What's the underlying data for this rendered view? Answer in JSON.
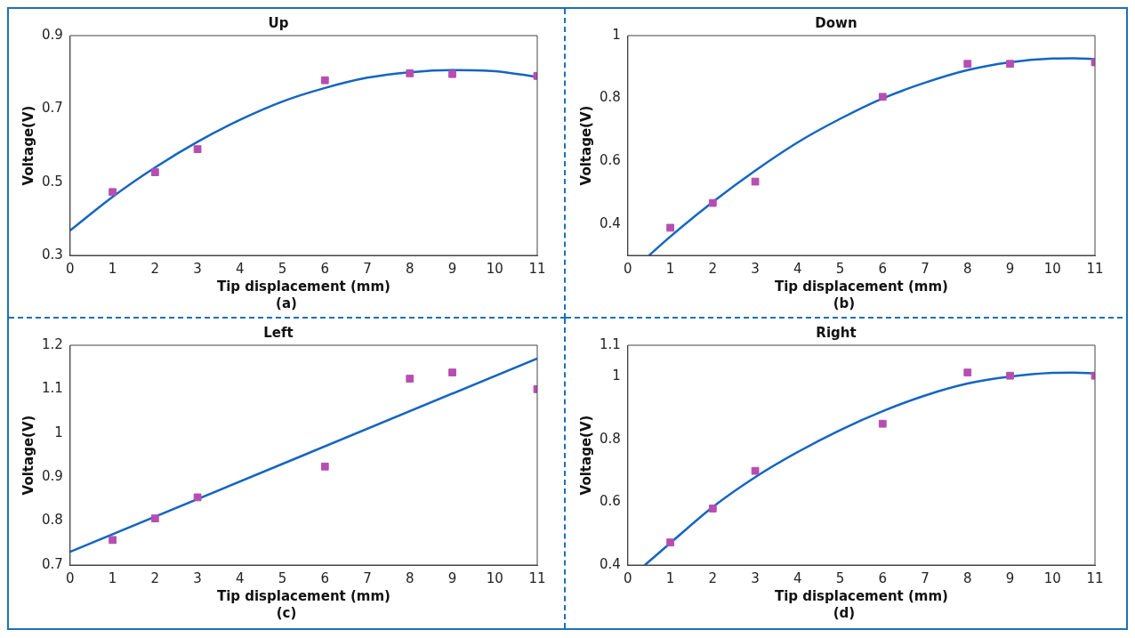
{
  "chart_data": [
    {
      "type": "scatter",
      "title": "Up",
      "xlabel": "Tip displacement (mm)",
      "ylabel": "Voltage(V)",
      "annotations": [
        "(a)"
      ],
      "xlim": [
        0,
        11
      ],
      "xticks": [
        0,
        1,
        2,
        3,
        4,
        5,
        6,
        7,
        8,
        9,
        10,
        11
      ],
      "ylim": [
        0.3,
        0.9
      ],
      "yticks": [
        0.3,
        0.5,
        0.7,
        0.9
      ],
      "grid": false,
      "marker": "square",
      "series": [
        {
          "color": "#b64eb2",
          "x": [
            1,
            2,
            3,
            6,
            8,
            9,
            11
          ],
          "values": [
            0.473,
            0.527,
            0.59,
            0.778,
            0.797,
            0.795,
            0.79
          ]
        },
        {
          "type": "line",
          "color": "#1565c0",
          "marker": "none",
          "x": [
            0,
            1,
            2,
            3,
            4,
            5,
            6,
            7,
            8,
            9,
            10,
            11
          ],
          "values": [
            0.368,
            0.46,
            0.54,
            0.61,
            0.67,
            0.72,
            0.757,
            0.785,
            0.8,
            0.806,
            0.803,
            0.787
          ]
        }
      ]
    },
    {
      "type": "scatter",
      "title": "Down",
      "xlabel": "Tip displacement (mm)",
      "ylabel": "Voltage(V)",
      "annotations": [
        "(b)"
      ],
      "xlim": [
        0,
        11
      ],
      "xticks": [
        0,
        1,
        2,
        3,
        4,
        5,
        6,
        7,
        8,
        9,
        10,
        11
      ],
      "ylim": [
        0.3,
        1
      ],
      "yticks": [
        0.4,
        0.6,
        0.8,
        1
      ],
      "grid": false,
      "marker": "square",
      "series": [
        {
          "color": "#b64eb2",
          "x": [
            1,
            2,
            3,
            6,
            8,
            9,
            11
          ],
          "values": [
            0.388,
            0.467,
            0.535,
            0.805,
            0.91,
            0.91,
            0.915
          ]
        },
        {
          "type": "line",
          "color": "#1565c0",
          "marker": "none",
          "x": [
            0.5,
            1,
            2,
            3,
            4,
            5,
            6,
            7,
            8,
            9,
            10,
            10.5,
            11
          ],
          "values": [
            0.3,
            0.36,
            0.47,
            0.57,
            0.66,
            0.735,
            0.8,
            0.85,
            0.89,
            0.915,
            0.927,
            0.928,
            0.925
          ]
        }
      ]
    },
    {
      "type": "scatter",
      "title": "Left",
      "xlabel": "Tip displacement (mm)",
      "ylabel": "Voltage(V)",
      "annotations": [
        "(c)"
      ],
      "xlim": [
        0,
        11
      ],
      "xticks": [
        0,
        1,
        2,
        3,
        4,
        5,
        6,
        7,
        8,
        9,
        10,
        11
      ],
      "ylim": [
        0.7,
        1.2
      ],
      "yticks": [
        0.7,
        0.8,
        0.9,
        1,
        1.1,
        1.2
      ],
      "grid": false,
      "marker": "square",
      "series": [
        {
          "color": "#b64eb2",
          "x": [
            1,
            2,
            3,
            6,
            8,
            9,
            11
          ],
          "values": [
            0.757,
            0.806,
            0.854,
            0.924,
            1.124,
            1.138,
            1.1
          ]
        },
        {
          "type": "line",
          "color": "#1565c0",
          "marker": "none",
          "x": [
            0,
            11
          ],
          "values": [
            0.73,
            1.17
          ]
        }
      ]
    },
    {
      "type": "scatter",
      "title": "Right",
      "xlabel": "Tip displacement (mm)",
      "ylabel": "Voltage(V)",
      "annotations": [
        "(d)"
      ],
      "xlim": [
        0,
        11
      ],
      "xticks": [
        0,
        1,
        2,
        3,
        4,
        5,
        6,
        7,
        8,
        9,
        10,
        11
      ],
      "ylim": [
        0.4,
        1.1
      ],
      "yticks": [
        0.4,
        0.6,
        0.8,
        1,
        1.1
      ],
      "grid": false,
      "marker": "square",
      "series": [
        {
          "color": "#b64eb2",
          "x": [
            1,
            2,
            3,
            6,
            8,
            9,
            11
          ],
          "values": [
            0.472,
            0.58,
            0.7,
            0.85,
            1.013,
            1.003,
            1.003
          ]
        },
        {
          "type": "line",
          "color": "#1565c0",
          "marker": "none",
          "x": [
            0.4,
            1,
            2,
            3,
            4,
            5,
            6,
            7,
            8,
            9,
            10,
            10.5,
            11
          ],
          "values": [
            0.4,
            0.47,
            0.585,
            0.68,
            0.76,
            0.83,
            0.89,
            0.94,
            0.978,
            1,
            1.012,
            1.013,
            1.01
          ]
        }
      ]
    }
  ]
}
